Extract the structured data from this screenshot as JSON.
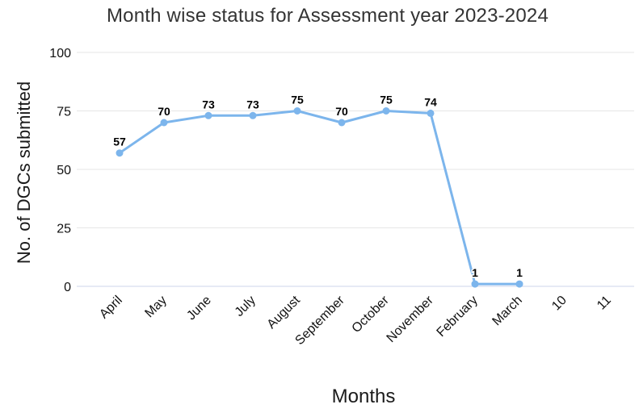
{
  "chart_data": {
    "type": "line",
    "title": "Month wise status for Assessment year 2023-2024",
    "xlabel": "Months",
    "ylabel": "No. of DGCs submitted",
    "categories": [
      "April",
      "May",
      "June",
      "July",
      "August",
      "September",
      "October",
      "November",
      "February",
      "March",
      "10",
      "11"
    ],
    "values": [
      57,
      70,
      73,
      73,
      75,
      70,
      75,
      74,
      1,
      1,
      null,
      null
    ],
    "yticks": [
      0,
      25,
      50,
      75,
      100
    ],
    "ylim": [
      0,
      100
    ],
    "grid": true,
    "legend": false,
    "x_label_rotation_deg": -45,
    "colors": {
      "line": "#7cb5ec",
      "marker": "#7cb5ec",
      "gridline": "#e6e6e6",
      "axis_line": "#ccd6eb",
      "title_text": "#333333",
      "tick_text": "#111111",
      "data_label_text": "#000000"
    }
  }
}
